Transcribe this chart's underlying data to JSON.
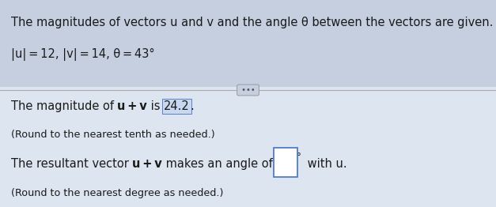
{
  "bg_top": "#c5cfe0",
  "bg_bottom": "#dde5f0",
  "text_color": "#1a1a1a",
  "divider_color": "#aaaaaa",
  "answer_box_color": "#4472c4",
  "answer_box_bg": "#c8d8f0",
  "white": "#ffffff",
  "fontsize_main": 10.5,
  "fontsize_small": 9.2,
  "line1_normal": "The magnitudes of vectors u and v and the angle θ between the vectors are given. Find the sum of u + v.",
  "line2": "|u| = 12, |v| = 14, θ = 43°",
  "body1_full": "The magnitude of u + v is 24.2.",
  "body1_round": "(Round to the nearest tenth as needed.)",
  "body2_full": "The resultant vector u + v makes an angle of ° with u.",
  "body2_round": "(Round to the nearest degree as needed.)"
}
